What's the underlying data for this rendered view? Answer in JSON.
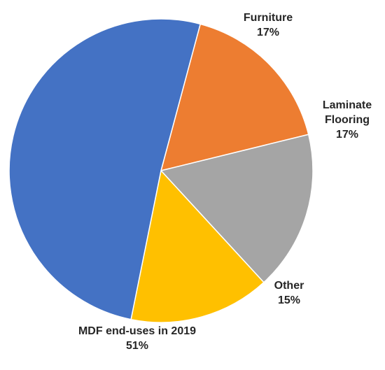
{
  "chart_data": {
    "type": "pie",
    "slices": [
      {
        "label": "Furniture",
        "value": 17,
        "value_label": "17%",
        "color": "#ED7D31"
      },
      {
        "label": "Laminate Flooring",
        "label_lines": [
          "Laminate",
          "Flooring"
        ],
        "value": 17,
        "value_label": "17%",
        "color": "#A5A5A5"
      },
      {
        "label": "Other",
        "value": 15,
        "value_label": "15%",
        "color": "#FFC000"
      },
      {
        "label": "MDF end-uses in 2019",
        "value": 51,
        "value_label": "51%",
        "color": "#4472C4"
      }
    ],
    "start_angle_deg": 15,
    "direction": "clockwise",
    "legend": "none"
  }
}
